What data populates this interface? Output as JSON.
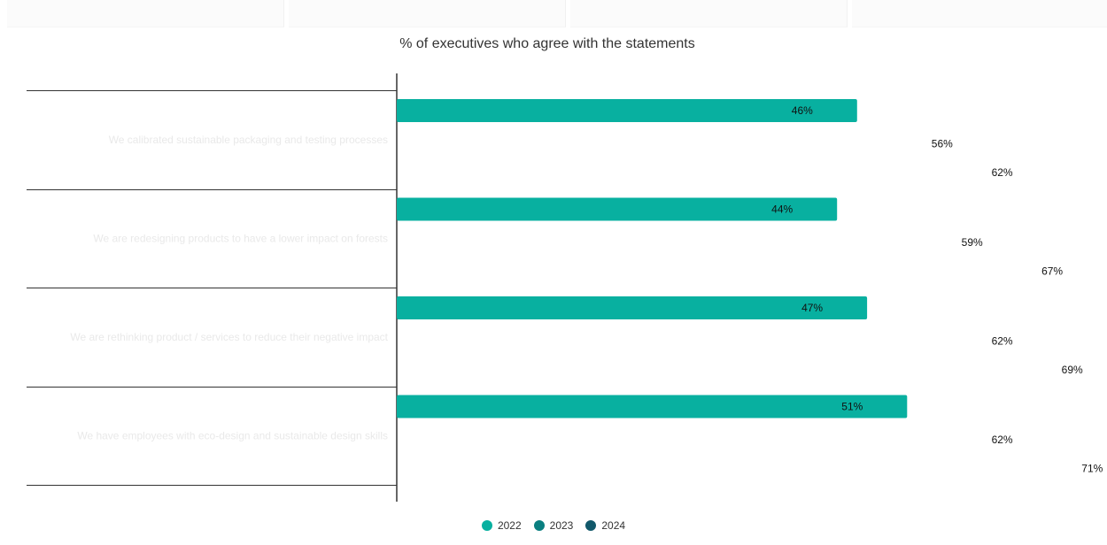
{
  "chart_data": {
    "type": "bar",
    "orientation": "horizontal",
    "title": "% of executives who agree with the statements",
    "categories": [
      "We calibrated sustainable packaging and testing processes",
      "We are redesigning products to have a lower impact on forests",
      "We are rethinking product / services to reduce their negative impact",
      "We have employees with eco-design and sustainable design skills"
    ],
    "series": [
      {
        "name": "2022",
        "color": "#08b0a0",
        "values": [
          46,
          44,
          47,
          51
        ]
      },
      {
        "name": "2023",
        "color": "#0a7f80",
        "values": [
          56,
          59,
          62,
          62
        ]
      },
      {
        "name": "2024",
        "color": "#11586a",
        "values": [
          62,
          67,
          69,
          71
        ]
      }
    ],
    "value_suffix": "%",
    "xlim": [
      0,
      100
    ],
    "legend_position": "bottom-center",
    "grid": false
  },
  "legend": {
    "items": [
      {
        "label": "2022",
        "color": "#08b0a0"
      },
      {
        "label": "2023",
        "color": "#0a7f80"
      },
      {
        "label": "2024",
        "color": "#11586a"
      }
    ]
  }
}
